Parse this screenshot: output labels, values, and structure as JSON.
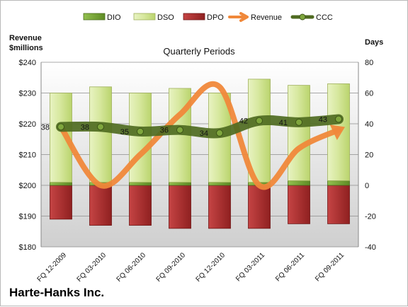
{
  "chart_data": {
    "type": "combo",
    "subtitle": "Quarterly Periods",
    "company": "Harte-Hanks Inc.",
    "left_axis": {
      "label_line1": "Revenue",
      "label_line2": "$millions",
      "min": 180,
      "max": 240,
      "ticks": [
        180,
        190,
        200,
        210,
        220,
        230,
        240
      ],
      "tick_labels": [
        "$180",
        "$190",
        "$200",
        "$210",
        "$220",
        "$230",
        "$240"
      ]
    },
    "right_axis": {
      "label": "Days",
      "min": -40,
      "max": 80,
      "ticks": [
        -40,
        -20,
        0,
        20,
        40,
        60,
        80
      ],
      "tick_labels": [
        "-40",
        "-20",
        "0",
        "20",
        "40",
        "60",
        "80"
      ]
    },
    "categories": [
      "FQ 12-2009",
      "FQ 03-2010",
      "FQ 06-2010",
      "FQ 09-2010",
      "FQ 12-2010",
      "FQ 03-2011",
      "FQ 06-2011",
      "FQ 09-2011"
    ],
    "series": [
      {
        "name": "DIO",
        "type": "stacked-bar",
        "axis": "right",
        "color": "#6f9a2c",
        "values": [
          2,
          2,
          2,
          2,
          2,
          2,
          3,
          3
        ]
      },
      {
        "name": "DSO",
        "type": "stacked-bar",
        "axis": "right",
        "color": "#d8eaa0",
        "values": [
          58,
          62,
          58,
          61,
          58,
          67,
          62,
          63
        ]
      },
      {
        "name": "DPO",
        "type": "negative-bar",
        "axis": "right",
        "color": "#b03030",
        "values": [
          -22,
          -26,
          -26,
          -28,
          -28,
          -28,
          -25,
          -25
        ]
      },
      {
        "name": "Revenue",
        "type": "line",
        "axis": "left",
        "color": "#f0883a",
        "values": [
          219,
          200,
          210,
          223,
          232,
          200,
          212,
          218
        ]
      },
      {
        "name": "CCC",
        "type": "line-markers",
        "axis": "right",
        "color": "#4f6b21",
        "values": [
          38,
          38,
          35,
          36,
          34,
          42,
          41,
          43
        ]
      }
    ],
    "ccc_labels": [
      "38",
      "38",
      "35",
      "36",
      "34",
      "42",
      "41",
      "43"
    ]
  }
}
